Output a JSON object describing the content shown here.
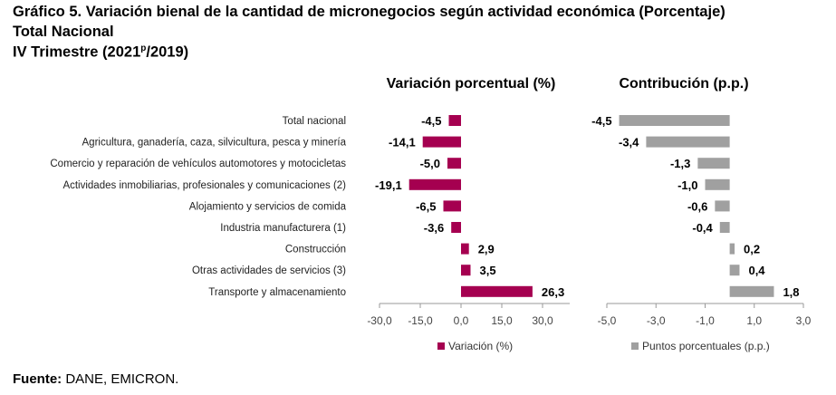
{
  "title": {
    "line1": "Gráfico 5. Variación bienal de la cantidad de micronegocios según actividad económica (Porcentaje)",
    "line2": "Total Nacional",
    "line3_pre": "IV Trimestre (2021",
    "line3_sup": "p",
    "line3_post": "/2019)"
  },
  "source": {
    "label": "Fuente:",
    "text": " DANE, EMICRON."
  },
  "colors": {
    "variation": "#A50050",
    "contribution": "#A0A0A0"
  },
  "chart_data": [
    {
      "type": "bar",
      "orientation": "horizontal",
      "title": "Variación porcentual (%)",
      "categories": [
        "Total nacional",
        "Agricultura, ganadería, caza, silvicultura, pesca y minería",
        "Comercio y reparación de vehículos automotores y motocicletas",
        "Actividades inmobiliarias, profesionales y comunicaciones (2)",
        "Alojamiento y servicios de comida",
        "Industria manufacturera (1)",
        "Construcción",
        "Otras actividades de servicios (3)",
        "Transporte y almacenamiento"
      ],
      "values": [
        -4.5,
        -14.1,
        -5.0,
        -19.1,
        -6.5,
        -3.6,
        2.9,
        3.5,
        26.3
      ],
      "labels": [
        "-4,5",
        "-14,1",
        "-5,0",
        "-19,1",
        "-6,5",
        "-3,6",
        "2,9",
        "3,5",
        "26,3"
      ],
      "xlim": [
        -30,
        40
      ],
      "ticks": [
        -30,
        -15,
        0,
        15,
        30
      ],
      "tick_labels": [
        "-30,0",
        "-15,0",
        "0,0",
        "15,0",
        "30,0"
      ],
      "legend": "Variación (%)",
      "legend_position": "bottom"
    },
    {
      "type": "bar",
      "orientation": "horizontal",
      "title": "Contribución (p.p.)",
      "values": [
        -4.5,
        -3.4,
        -1.3,
        -1.0,
        -0.6,
        -0.4,
        0.2,
        0.4,
        1.8
      ],
      "labels": [
        "-4,5",
        "-3,4",
        "-1,3",
        "-1,0",
        "-0,6",
        "-0,4",
        "0,2",
        "0,4",
        "1,8"
      ],
      "xlim": [
        -5,
        3
      ],
      "ticks": [
        -5,
        -3,
        -1,
        1,
        3
      ],
      "tick_labels": [
        "-5,0",
        "-3,0",
        "-1,0",
        "1,0",
        "3,0"
      ],
      "legend": "Puntos porcentuales (p.p.)",
      "legend_position": "bottom"
    }
  ]
}
